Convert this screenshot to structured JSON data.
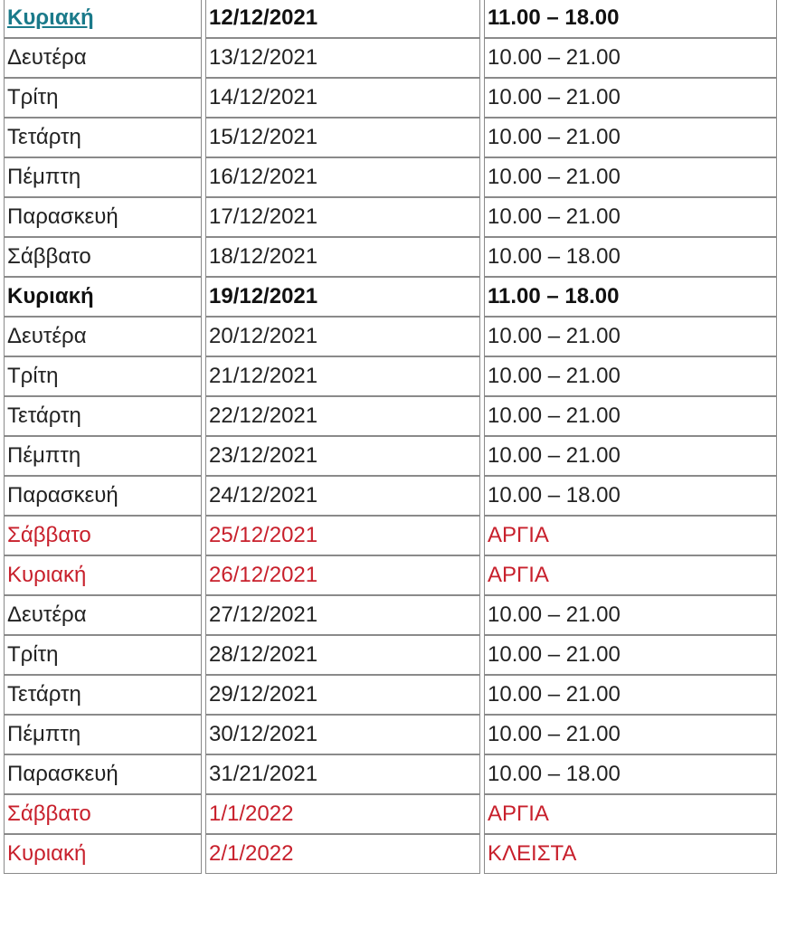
{
  "colors": {
    "text": "#222222",
    "holiday": "#c8202c",
    "link": "#1a7a8a",
    "border": "#8a8a8a"
  },
  "rows": [
    {
      "day": "Κυριακή",
      "date": "12/12/2021",
      "hours": "11.00 – 18.00",
      "style": "bold",
      "link": true
    },
    {
      "day": "Δευτέρα",
      "date": "13/12/2021",
      "hours": "10.00 – 21.00",
      "style": "normal"
    },
    {
      "day": "Τρίτη",
      "date": "14/12/2021",
      "hours": "10.00 – 21.00",
      "style": "normal"
    },
    {
      "day": "Τετάρτη",
      "date": "15/12/2021",
      "hours": "10.00 – 21.00",
      "style": "normal"
    },
    {
      "day": "Πέμπτη",
      "date": "16/12/2021",
      "hours": "10.00 – 21.00",
      "style": "normal"
    },
    {
      "day": "Παρασκευή",
      "date": "17/12/2021",
      "hours": "10.00 – 21.00",
      "style": "normal"
    },
    {
      "day": "Σάββατο",
      "date": "18/12/2021",
      "hours": "10.00 – 18.00",
      "style": "normal"
    },
    {
      "day": "Κυριακή",
      "date": "19/12/2021",
      "hours": "11.00 – 18.00",
      "style": "bold"
    },
    {
      "day": "Δευτέρα",
      "date": "20/12/2021",
      "hours": "10.00 – 21.00",
      "style": "normal"
    },
    {
      "day": "Τρίτη",
      "date": "21/12/2021",
      "hours": "10.00 – 21.00",
      "style": "normal"
    },
    {
      "day": "Τετάρτη",
      "date": "22/12/2021",
      "hours": "10.00 – 21.00",
      "style": "normal"
    },
    {
      "day": "Πέμπτη",
      "date": "23/12/2021",
      "hours": "10.00 – 21.00",
      "style": "normal"
    },
    {
      "day": "Παρασκευή",
      "date": "24/12/2021",
      "hours": "10.00 – 18.00",
      "style": "normal"
    },
    {
      "day": "Σάββατο",
      "date": "25/12/2021",
      "hours": "ΑΡΓΙΑ",
      "style": "red"
    },
    {
      "day": "Κυριακή",
      "date": "26/12/2021",
      "hours": "ΑΡΓΙΑ",
      "style": "red"
    },
    {
      "day": "Δευτέρα",
      "date": "27/12/2021",
      "hours": "10.00 – 21.00",
      "style": "normal"
    },
    {
      "day": "Τρίτη",
      "date": "28/12/2021",
      "hours": "10.00 – 21.00",
      "style": "normal"
    },
    {
      "day": "Τετάρτη",
      "date": "29/12/2021",
      "hours": "10.00 – 21.00",
      "style": "normal"
    },
    {
      "day": "Πέμπτη",
      "date": "30/12/2021",
      "hours": "10.00 – 21.00",
      "style": "normal"
    },
    {
      "day": "Παρασκευή",
      "date": "31/21/2021",
      "hours": "10.00 – 18.00",
      "style": "normal"
    },
    {
      "day": "Σάββατο",
      "date": "1/1/2022",
      "hours": "ΑΡΓΙΑ",
      "style": "red"
    },
    {
      "day": "Κυριακή",
      "date": "2/1/2022",
      "hours": "ΚΛΕΙΣΤΑ",
      "style": "red"
    }
  ]
}
